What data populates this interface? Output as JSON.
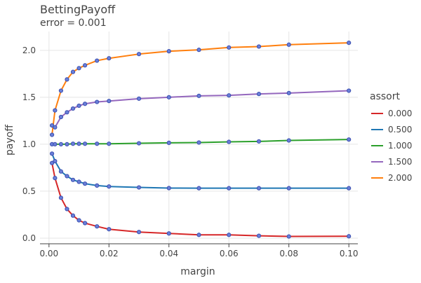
{
  "chart_data": {
    "type": "line",
    "title": "BettingPayoff",
    "subtitle": "error = 0.001",
    "xlabel": "margin",
    "ylabel": "payoff",
    "xlim": [
      -0.003,
      0.103
    ],
    "ylim": [
      -0.06,
      2.2
    ],
    "x_ticks": [
      0,
      0.02,
      0.04,
      0.06,
      0.08,
      0.1
    ],
    "x_tick_labels": [
      "0.00",
      "0.02",
      "0.04",
      "0.06",
      "0.08",
      "0.10"
    ],
    "y_ticks": [
      0,
      0.5,
      1,
      1.5,
      2
    ],
    "y_tick_labels": [
      "0.0",
      "0.5",
      "1.0",
      "1.5",
      "2.0"
    ],
    "grid": true,
    "legend_title": "assort",
    "legend_position": "right",
    "marker_color": "#6a7fd8",
    "marker_edge_color": "#3b4fb0",
    "x": [
      0.001,
      0.002,
      0.004,
      0.006,
      0.008,
      0.01,
      0.012,
      0.016,
      0.02,
      0.03,
      0.04,
      0.05,
      0.06,
      0.07,
      0.08,
      0.1
    ],
    "series": [
      {
        "name": "0.000",
        "color": "#d62728",
        "values": [
          0.8,
          0.64,
          0.43,
          0.31,
          0.24,
          0.19,
          0.16,
          0.125,
          0.095,
          0.065,
          0.05,
          0.035,
          0.035,
          0.025,
          0.018,
          0.02
        ]
      },
      {
        "name": "0.500",
        "color": "#1f77b4",
        "values": [
          0.9,
          0.82,
          0.71,
          0.66,
          0.62,
          0.6,
          0.58,
          0.56,
          0.55,
          0.54,
          0.533,
          0.532,
          0.532,
          0.532,
          0.532,
          0.532
        ]
      },
      {
        "name": "1.000",
        "color": "#2ca02c",
        "values": [
          1.0,
          1.0,
          1.0,
          1.0,
          1.005,
          1.005,
          1.005,
          1.005,
          1.005,
          1.01,
          1.015,
          1.018,
          1.025,
          1.03,
          1.04,
          1.05
        ]
      },
      {
        "name": "1.500",
        "color": "#9467bd",
        "values": [
          1.2,
          1.18,
          1.29,
          1.34,
          1.38,
          1.41,
          1.43,
          1.45,
          1.46,
          1.485,
          1.5,
          1.515,
          1.52,
          1.535,
          1.545,
          1.57
        ]
      },
      {
        "name": "2.000",
        "color": "#ff7f0e",
        "values": [
          1.1,
          1.36,
          1.57,
          1.69,
          1.77,
          1.81,
          1.84,
          1.89,
          1.915,
          1.96,
          1.99,
          2.005,
          2.03,
          2.04,
          2.06,
          2.08
        ]
      }
    ]
  }
}
